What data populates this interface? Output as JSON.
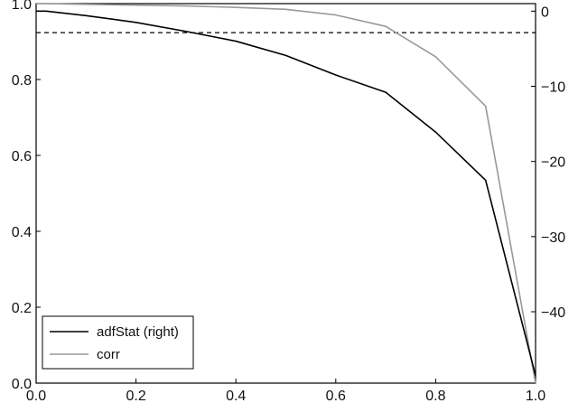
{
  "chart_data": {
    "type": "line",
    "x": [
      0.0,
      0.02,
      0.1,
      0.2,
      0.3,
      0.4,
      0.5,
      0.6,
      0.7,
      0.8,
      0.9,
      1.0
    ],
    "xlim": [
      0.0,
      1.0
    ],
    "x_ticks": [
      "0.0",
      "0.2",
      "0.4",
      "0.6",
      "0.8",
      "1.0"
    ],
    "y_left": {
      "lim": [
        0.0,
        1.0
      ],
      "ticks": [
        "0.0",
        "0.2",
        "0.4",
        "0.6",
        "0.8",
        "1.0"
      ]
    },
    "y_right": {
      "lim": [
        -49.5,
        1.0
      ],
      "ticks": [
        "0",
        "−10",
        "−20",
        "−30",
        "−40"
      ],
      "tick_values": [
        0,
        -10,
        -20,
        -30,
        -40
      ]
    },
    "series": [
      {
        "name": "adfStat (right)",
        "axis": "right",
        "color": "#000000",
        "values": [
          0.0,
          0.0,
          -0.6,
          -1.5,
          -2.7,
          -4.0,
          -5.9,
          -8.5,
          -10.8,
          -16.1,
          -22.5,
          -48.5
        ]
      },
      {
        "name": "corr",
        "axis": "left",
        "color": "#999999",
        "values": [
          1.0,
          1.0,
          0.998,
          0.996,
          0.994,
          0.99,
          0.985,
          0.97,
          0.94,
          0.86,
          0.73,
          0.0
        ]
      }
    ],
    "reference_lines": [
      {
        "axis": "right",
        "value": -2.86,
        "style": "dashed",
        "color": "#000000"
      }
    ],
    "legend_position": "lower-left",
    "grid": false,
    "title": "",
    "xlabel": "",
    "ylabel": ""
  }
}
